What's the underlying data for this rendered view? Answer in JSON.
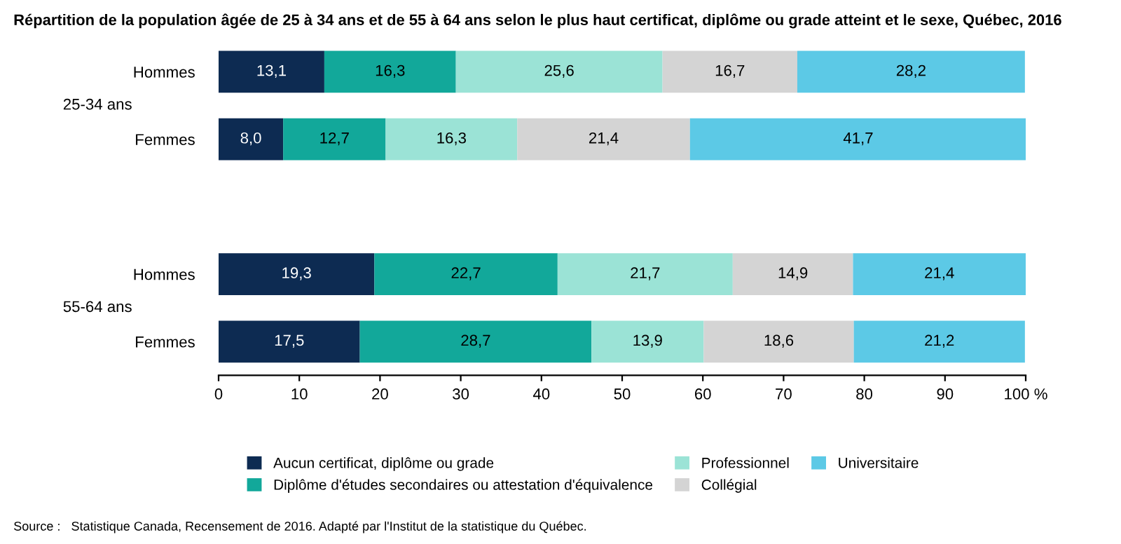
{
  "chart_data": {
    "type": "bar",
    "orientation": "horizontal",
    "stacked": true,
    "title": "Répartition de la population âgée de 25 à 34 ans et de 55 à 64 ans selon le plus haut certificat, diplôme ou grade atteint et le sexe, Québec, 2016",
    "categories": [
      "Hommes",
      "Femmes",
      null,
      "Hommes",
      "Femmes"
    ],
    "series": [
      {
        "name": "Aucun certificat, diplôme ou grade",
        "color": "#0d2b52",
        "values": [
          13.1,
          8.0,
          null,
          19.3,
          17.5
        ],
        "value_labels": [
          "13,1",
          "8,0",
          null,
          "19,3",
          "17,5"
        ]
      },
      {
        "name": "Diplôme d'études secondaires ou attestation d'équivalence",
        "color": "#12a89a",
        "values": [
          16.3,
          12.7,
          null,
          22.7,
          28.7
        ],
        "value_labels": [
          "16,3",
          "12,7",
          null,
          "22,7",
          "28,7"
        ]
      },
      {
        "name": "Professionnel",
        "color": "#9be3d6",
        "values": [
          25.6,
          16.3,
          null,
          21.7,
          13.9
        ],
        "value_labels": [
          "25,6",
          "16,3",
          null,
          "21,7",
          "13,9"
        ]
      },
      {
        "name": "Collégial",
        "color": "#d4d4d4",
        "values": [
          16.7,
          21.4,
          null,
          14.9,
          18.6
        ],
        "value_labels": [
          "16,7",
          "21,4",
          null,
          "14,9",
          "18,6"
        ]
      },
      {
        "name": "Universitaire",
        "color": "#5cc9e6",
        "values": [
          28.2,
          41.7,
          null,
          21.4,
          21.2
        ],
        "value_labels": [
          "28,2",
          "41,7",
          null,
          "21,4",
          "21,2"
        ]
      }
    ],
    "xlim": [
      0,
      100
    ],
    "xticks": [
      0,
      10,
      20,
      30,
      40,
      50,
      60,
      70,
      80,
      90,
      {
        "value": 100,
        "label": "100 %"
      }
    ],
    "legend": "bottom",
    "annotations": [
      "25-34 ans",
      "55-64 ans",
      "Source :   Statistique Canada, Recensement de 2016. Adapté par l'Institut de la statistique du Québec."
    ]
  }
}
